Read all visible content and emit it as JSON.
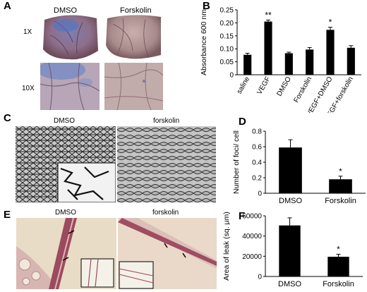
{
  "panels": {
    "A": {
      "letter": "A",
      "col_labels": [
        "DMSO",
        "Forskolin"
      ],
      "row_labels": [
        "1X",
        "10X"
      ]
    },
    "B": {
      "letter": "B"
    },
    "C": {
      "letter": "C",
      "labels": [
        "DMSO",
        "forskolin"
      ]
    },
    "D": {
      "letter": "D"
    },
    "E": {
      "letter": "E",
      "labels": [
        "DMSO",
        "forskolin"
      ]
    },
    "F": {
      "letter": "F"
    }
  },
  "chart_data": [
    {
      "panel": "B",
      "type": "bar",
      "ylabel": "Absorbance 600 nm",
      "categories": [
        "saline",
        "VEGF",
        "DMSO",
        "Forskolin",
        "VEGF+DMSO",
        "VEGF+forskolin"
      ],
      "values": [
        0.077,
        0.205,
        0.083,
        0.097,
        0.173,
        0.104
      ],
      "errors": [
        0.006,
        0.006,
        0.004,
        0.008,
        0.01,
        0.008
      ],
      "annotations": [
        "",
        "**",
        "",
        "",
        "*",
        ""
      ],
      "ylim": [
        0,
        0.25
      ],
      "yticks": [
        "0",
        "0.05",
        "0.10",
        "0.15",
        "0.20",
        "0.25"
      ],
      "bar_color": "#000000"
    },
    {
      "panel": "D",
      "type": "bar",
      "ylabel": "Number of foci/ cell",
      "categories": [
        "DMSO",
        "Forskolin"
      ],
      "values": [
        0.59,
        0.18
      ],
      "errors": [
        0.1,
        0.04
      ],
      "annotations": [
        "",
        "*"
      ],
      "ylim": [
        0,
        0.8
      ],
      "yticks": [
        "0",
        "0.2",
        "0.4",
        "0.6",
        "0.8"
      ],
      "bar_color": "#000000"
    },
    {
      "panel": "F",
      "type": "bar",
      "ylabel": "Area of leak (sq. µm)",
      "categories": [
        "DMSO",
        "Forskolin"
      ],
      "values": [
        50500,
        19500
      ],
      "errors": [
        7500,
        2500
      ],
      "annotations": [
        "",
        "*"
      ],
      "ylim": [
        0,
        60000
      ],
      "yticks": [
        "0",
        "20000",
        "40000",
        "60000"
      ],
      "bar_color": "#000000"
    }
  ]
}
